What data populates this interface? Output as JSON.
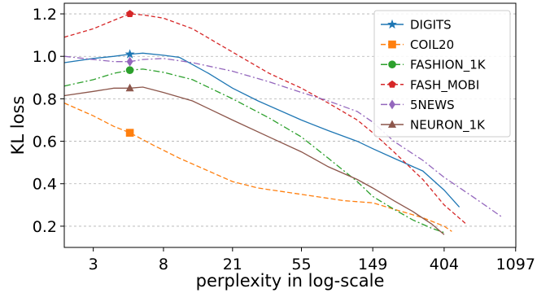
{
  "chart_data": {
    "type": "line",
    "xlabel": "perplexity in log-scale",
    "ylabel": "KL loss",
    "xscale": "log",
    "xlim": [
      2,
      1100
    ],
    "ylim": [
      0.1,
      1.25
    ],
    "xticks": [
      3,
      8,
      21,
      55,
      149,
      404,
      1097
    ],
    "yticks": [
      0.2,
      0.4,
      0.6,
      0.8,
      1.0,
      1.2
    ],
    "ytick_labels": [
      "0.2",
      "0.4",
      "0.6",
      "0.8",
      "1.0",
      "1.2"
    ],
    "grid": "horizontal-dashed",
    "legend": "top-right",
    "marker_x": 5,
    "series": [
      {
        "name": "DIGITS",
        "color": "#1f77b4",
        "dash": "solid",
        "marker": "star",
        "x": [
          2,
          3,
          4,
          5,
          6,
          8,
          10,
          15,
          21,
          30,
          55,
          80,
          120,
          149,
          200,
          300,
          404,
          500
        ],
        "y": [
          0.97,
          0.99,
          1.0,
          1.01,
          1.015,
          1.005,
          0.995,
          0.92,
          0.85,
          0.79,
          0.7,
          0.65,
          0.6,
          0.565,
          0.52,
          0.46,
          0.37,
          0.29
        ]
      },
      {
        "name": "COIL20",
        "color": "#ff7f0e",
        "dash": "6,3",
        "marker": "square",
        "x": [
          2,
          3,
          4,
          5,
          7,
          10,
          15,
          21,
          30,
          55,
          100,
          149,
          200,
          300,
          404,
          450
        ],
        "y": [
          0.78,
          0.72,
          0.67,
          0.64,
          0.58,
          0.52,
          0.46,
          0.41,
          0.38,
          0.35,
          0.32,
          0.31,
          0.28,
          0.24,
          0.2,
          0.175
        ]
      },
      {
        "name": "FASHION_1K",
        "color": "#2ca02c",
        "dash": "8,3,2,3",
        "marker": "circle",
        "x": [
          2,
          3,
          4,
          5,
          6,
          8,
          12,
          21,
          35,
          55,
          80,
          120,
          149,
          200,
          260,
          340,
          404
        ],
        "y": [
          0.86,
          0.89,
          0.92,
          0.935,
          0.94,
          0.925,
          0.89,
          0.8,
          0.71,
          0.62,
          0.52,
          0.41,
          0.34,
          0.28,
          0.23,
          0.19,
          0.17
        ]
      },
      {
        "name": "FASH_MOBI",
        "color": "#d62728",
        "dash": "5,3",
        "marker": "pentagon",
        "x": [
          2,
          3,
          4,
          5,
          6,
          8,
          12,
          21,
          35,
          55,
          80,
          120,
          149,
          200,
          300,
          404,
          550
        ],
        "y": [
          1.09,
          1.13,
          1.17,
          1.2,
          1.195,
          1.18,
          1.13,
          1.02,
          0.92,
          0.85,
          0.78,
          0.7,
          0.64,
          0.55,
          0.42,
          0.3,
          0.21
        ]
      },
      {
        "name": "5NEWS",
        "color": "#9467bd",
        "dash": "8,3,2,3",
        "marker": "diamond",
        "x": [
          2,
          3,
          4,
          5,
          6,
          8,
          12,
          21,
          35,
          55,
          80,
          120,
          149,
          200,
          300,
          404,
          600,
          900
        ],
        "y": [
          1.0,
          0.985,
          0.975,
          0.975,
          0.985,
          0.99,
          0.97,
          0.93,
          0.88,
          0.83,
          0.79,
          0.74,
          0.69,
          0.6,
          0.51,
          0.43,
          0.34,
          0.245
        ]
      },
      {
        "name": "NEURON_1K",
        "color": "#8c564b",
        "dash": "solid",
        "marker": "triangle",
        "x": [
          2,
          3,
          4,
          5,
          6,
          8,
          12,
          21,
          35,
          55,
          80,
          120,
          149,
          200,
          260,
          340,
          404
        ],
        "y": [
          0.815,
          0.835,
          0.85,
          0.85,
          0.855,
          0.83,
          0.79,
          0.7,
          0.62,
          0.55,
          0.48,
          0.42,
          0.38,
          0.32,
          0.27,
          0.21,
          0.16
        ]
      }
    ]
  }
}
